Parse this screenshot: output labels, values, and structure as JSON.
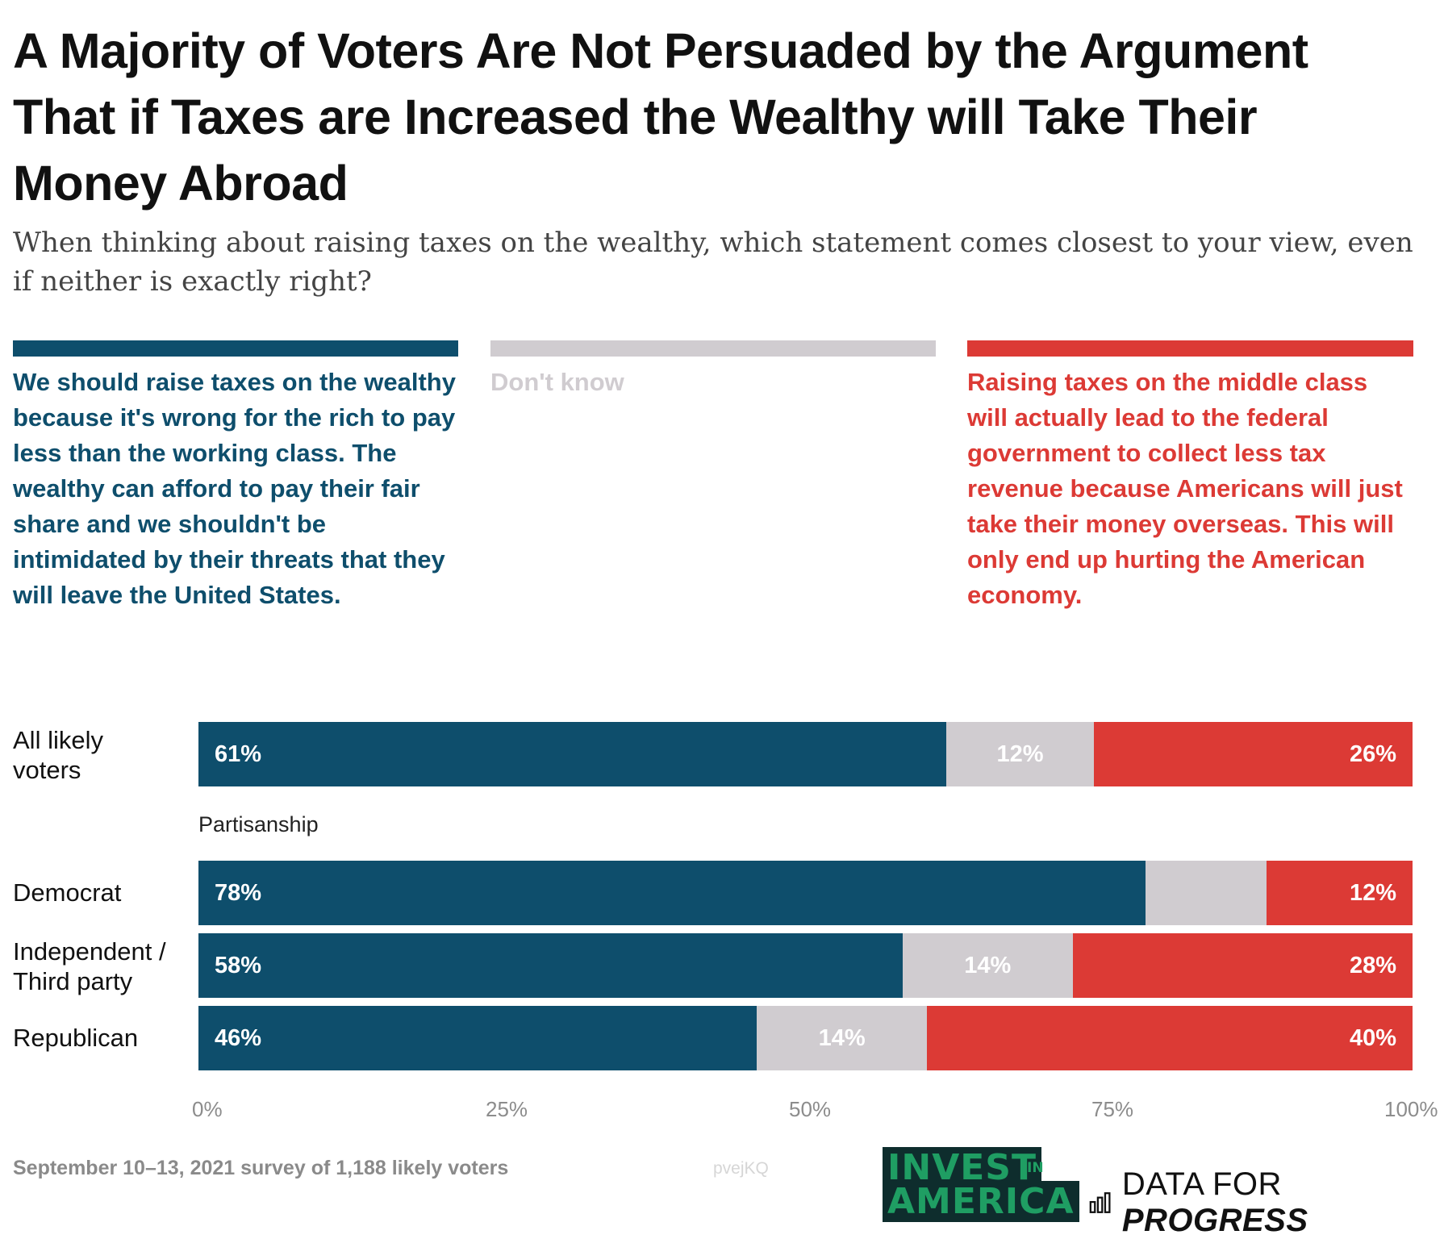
{
  "title": "A Majority of Voters Are Not Persuaded by the Argument That if Taxes are Increased the Wealthy will Take Their Money Abroad",
  "subtitle": "When thinking about raising taxes on the wealthy, which statement comes closest to your view, even if neither is exactly right?",
  "colors": {
    "raise": "#0e4e6c",
    "dont_know": "#d0ccd0",
    "middle_class": "#dc3a35"
  },
  "legend": [
    {
      "label": "We should raise taxes on the wealthy because it's wrong for the rich to pay less than the working class. The wealthy can afford to pay their fair share and we shouldn't be intimidated by their threats that they will leave the United States."
    },
    {
      "label": "Don't know"
    },
    {
      "label": "Raising taxes on the middle class will actually lead to the federal government to collect less tax revenue because Americans will just take their money overseas. This will only end up hurting the American economy."
    }
  ],
  "group_label": "Partisanship",
  "footer": {
    "note": "September 10–13, 2021 survey of 1,188 likely voters",
    "watermark": "pvejKQ",
    "logo_invest_line1": "INVEST",
    "logo_invest_in": "IN",
    "logo_invest_line2": "AMERICA",
    "logo_dfp_regular": "DATA FOR ",
    "logo_dfp_bold": "PROGRESS"
  },
  "chart_data": {
    "type": "bar",
    "orientation": "horizontal",
    "stacked": true,
    "categories": [
      "All likely voters",
      "Democrat",
      "Independent / Third party",
      "Republican"
    ],
    "series": [
      {
        "name": "We should raise taxes on the wealthy",
        "values": [
          61,
          78,
          58,
          46
        ],
        "labels": [
          "61%",
          "78%",
          "58%",
          "46%"
        ]
      },
      {
        "name": "Don't know",
        "values": [
          12,
          10,
          14,
          14
        ],
        "labels": [
          "12%",
          "",
          "14%",
          "14%"
        ]
      },
      {
        "name": "Raising taxes will lead to less revenue",
        "values": [
          26,
          12,
          28,
          40
        ],
        "labels": [
          "26%",
          "12%",
          "28%",
          "40%"
        ]
      }
    ],
    "xlim": [
      0,
      100
    ],
    "xticks": [
      "0%",
      "25%",
      "50%",
      "75%",
      "100%"
    ]
  }
}
